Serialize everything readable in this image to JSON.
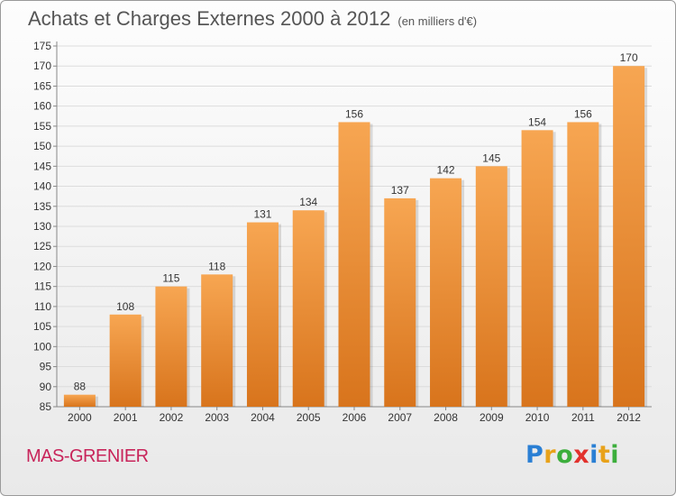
{
  "header": {
    "title": "Achats et Charges Externes 2000 à 2012",
    "subtitle": "(en milliers d'€)"
  },
  "footer": {
    "commune": "MAS-GRENIER",
    "logo_letters": [
      {
        "char": "P",
        "color": "#2a7fd4"
      },
      {
        "char": "r",
        "color": "#e8a21a"
      },
      {
        "char": "o",
        "color": "#3cae3c"
      },
      {
        "char": "x",
        "color": "#e2322d"
      },
      {
        "char": "i",
        "color": "#2a7fd4"
      },
      {
        "char": "t",
        "color": "#e8a21a"
      },
      {
        "char": "i",
        "color": "#3cae3c"
      }
    ]
  },
  "chart_data": {
    "type": "bar",
    "title": "Achats et Charges Externes 2000 à 2012",
    "subtitle": "(en milliers d'€)",
    "xlabel": "",
    "ylabel": "",
    "categories": [
      "2000",
      "2001",
      "2002",
      "2003",
      "2004",
      "2005",
      "2006",
      "2007",
      "2008",
      "2009",
      "2010",
      "2011",
      "2012"
    ],
    "values": [
      88,
      108,
      115,
      118,
      131,
      134,
      156,
      137,
      142,
      145,
      154,
      156,
      170
    ],
    "ylim": [
      85,
      175
    ],
    "ytick_step": 5,
    "grid": true,
    "bar_color_top": "#f7a652",
    "bar_color_bottom": "#d8741c"
  }
}
